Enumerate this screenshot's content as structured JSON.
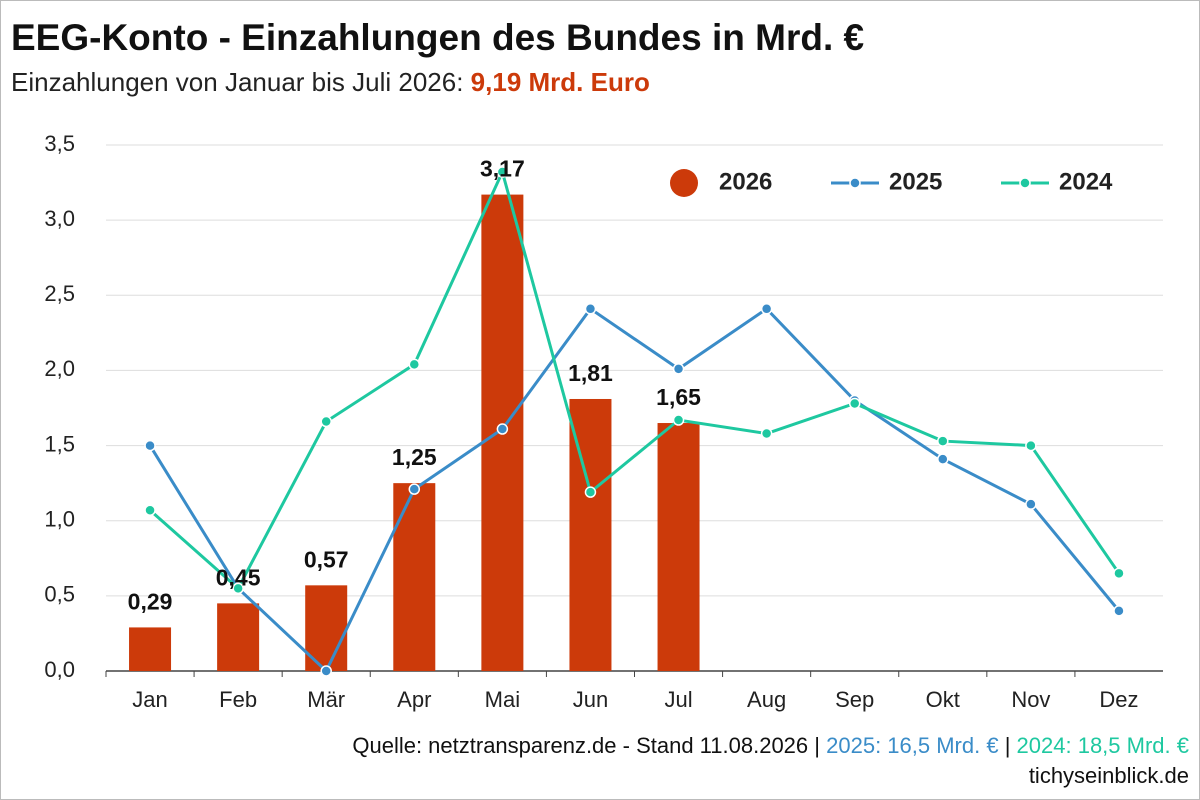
{
  "chart_data": {
    "type": "bar",
    "title": "EEG-Konto - Einzahlungen des Bundes in Mrd. €",
    "subtitle": "Einzahlungen von Januar bis Juli 2026:",
    "subtitle_highlight": "9,19 Mrd. Euro",
    "source": "Quelle: netztransparenz.de - Stand 11.08.2026",
    "separator": "|",
    "total_2025": "2025: 16,5 Mrd. €",
    "total_2024": "2024: 18,5 Mrd. €",
    "site": "tichyseinblick.de",
    "categories": [
      "Jan",
      "Feb",
      "Mär",
      "Apr",
      "Mai",
      "Jun",
      "Jul",
      "Aug",
      "Sep",
      "Okt",
      "Nov",
      "Dez"
    ],
    "series": [
      {
        "name": "2026",
        "type": "bar",
        "color": "#cc3a0a",
        "values": [
          0.29,
          0.45,
          0.57,
          1.25,
          3.17,
          1.81,
          1.65,
          null,
          null,
          null,
          null,
          null
        ],
        "value_labels": [
          "0,29",
          "0,45",
          "0,57",
          "1,25",
          "3,17",
          "1,81",
          "1,65",
          null,
          null,
          null,
          null,
          null
        ]
      },
      {
        "name": "2025",
        "type": "line",
        "color": "#3a8cc8",
        "values": [
          1.5,
          0.55,
          0.0,
          1.21,
          1.61,
          2.41,
          2.01,
          2.41,
          1.8,
          1.41,
          1.11,
          0.4
        ]
      },
      {
        "name": "2024",
        "type": "line",
        "color": "#1ec8a0",
        "values": [
          1.07,
          0.55,
          1.66,
          2.04,
          3.32,
          1.19,
          1.67,
          1.58,
          1.78,
          1.53,
          1.5,
          0.65
        ]
      }
    ],
    "ylim": [
      0,
      3.5
    ],
    "yticks": [
      {
        "value": 0,
        "label": "0,0"
      },
      {
        "value": 0.5,
        "label": "0,5"
      },
      {
        "value": 1,
        "label": "1,0"
      },
      {
        "value": 1.5,
        "label": "1,5"
      },
      {
        "value": 2,
        "label": "2,0"
      },
      {
        "value": 2.5,
        "label": "2,5"
      },
      {
        "value": 3,
        "label": "3,0"
      },
      {
        "value": 3.5,
        "label": "3,5"
      }
    ],
    "grid": true,
    "legend": "top-right"
  }
}
